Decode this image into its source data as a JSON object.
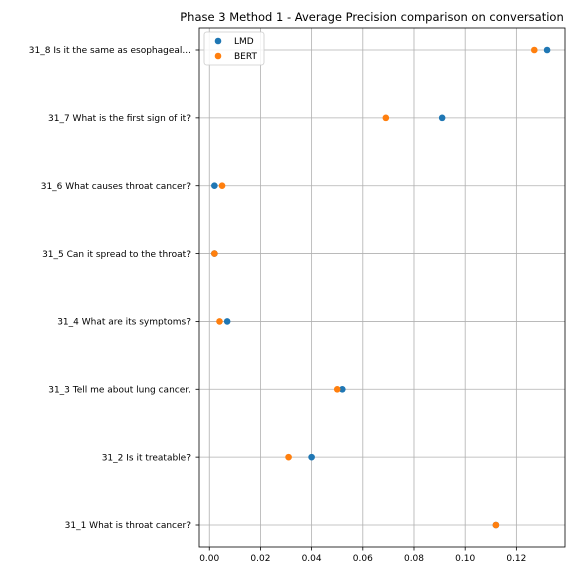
{
  "chart_data": {
    "type": "scatter",
    "title": "Phase 3 Method 1 - Average Precision comparison on conversation",
    "xlabel": "",
    "ylabel": "",
    "xlim": [
      -0.004,
      0.139
    ],
    "xticks": [
      0.0,
      0.02,
      0.04,
      0.06,
      0.08,
      0.1,
      0.12
    ],
    "xtick_labels": [
      "0.00",
      "0.02",
      "0.04",
      "0.06",
      "0.08",
      "0.10",
      "0.12"
    ],
    "grid": true,
    "legend": "top-left",
    "categories": [
      "31_1 What is throat cancer?",
      "31_2 Is it treatable?",
      "31_3 Tell me about lung cancer.",
      "31_4 What are its symptoms?",
      "31_5 Can it spread to the throat?",
      "31_6 What causes throat cancer?",
      "31_7 What is the first sign of it?",
      "31_8 Is it the same as esophageal..."
    ],
    "series": [
      {
        "name": "LMD",
        "color": "#1f77b4",
        "values": [
          0.112,
          0.04,
          0.052,
          0.007,
          0.002,
          0.002,
          0.091,
          0.132
        ]
      },
      {
        "name": "BERT",
        "color": "#ff7f0e",
        "values": [
          0.112,
          0.031,
          0.05,
          0.004,
          0.002,
          0.005,
          0.069,
          0.127
        ]
      }
    ]
  }
}
